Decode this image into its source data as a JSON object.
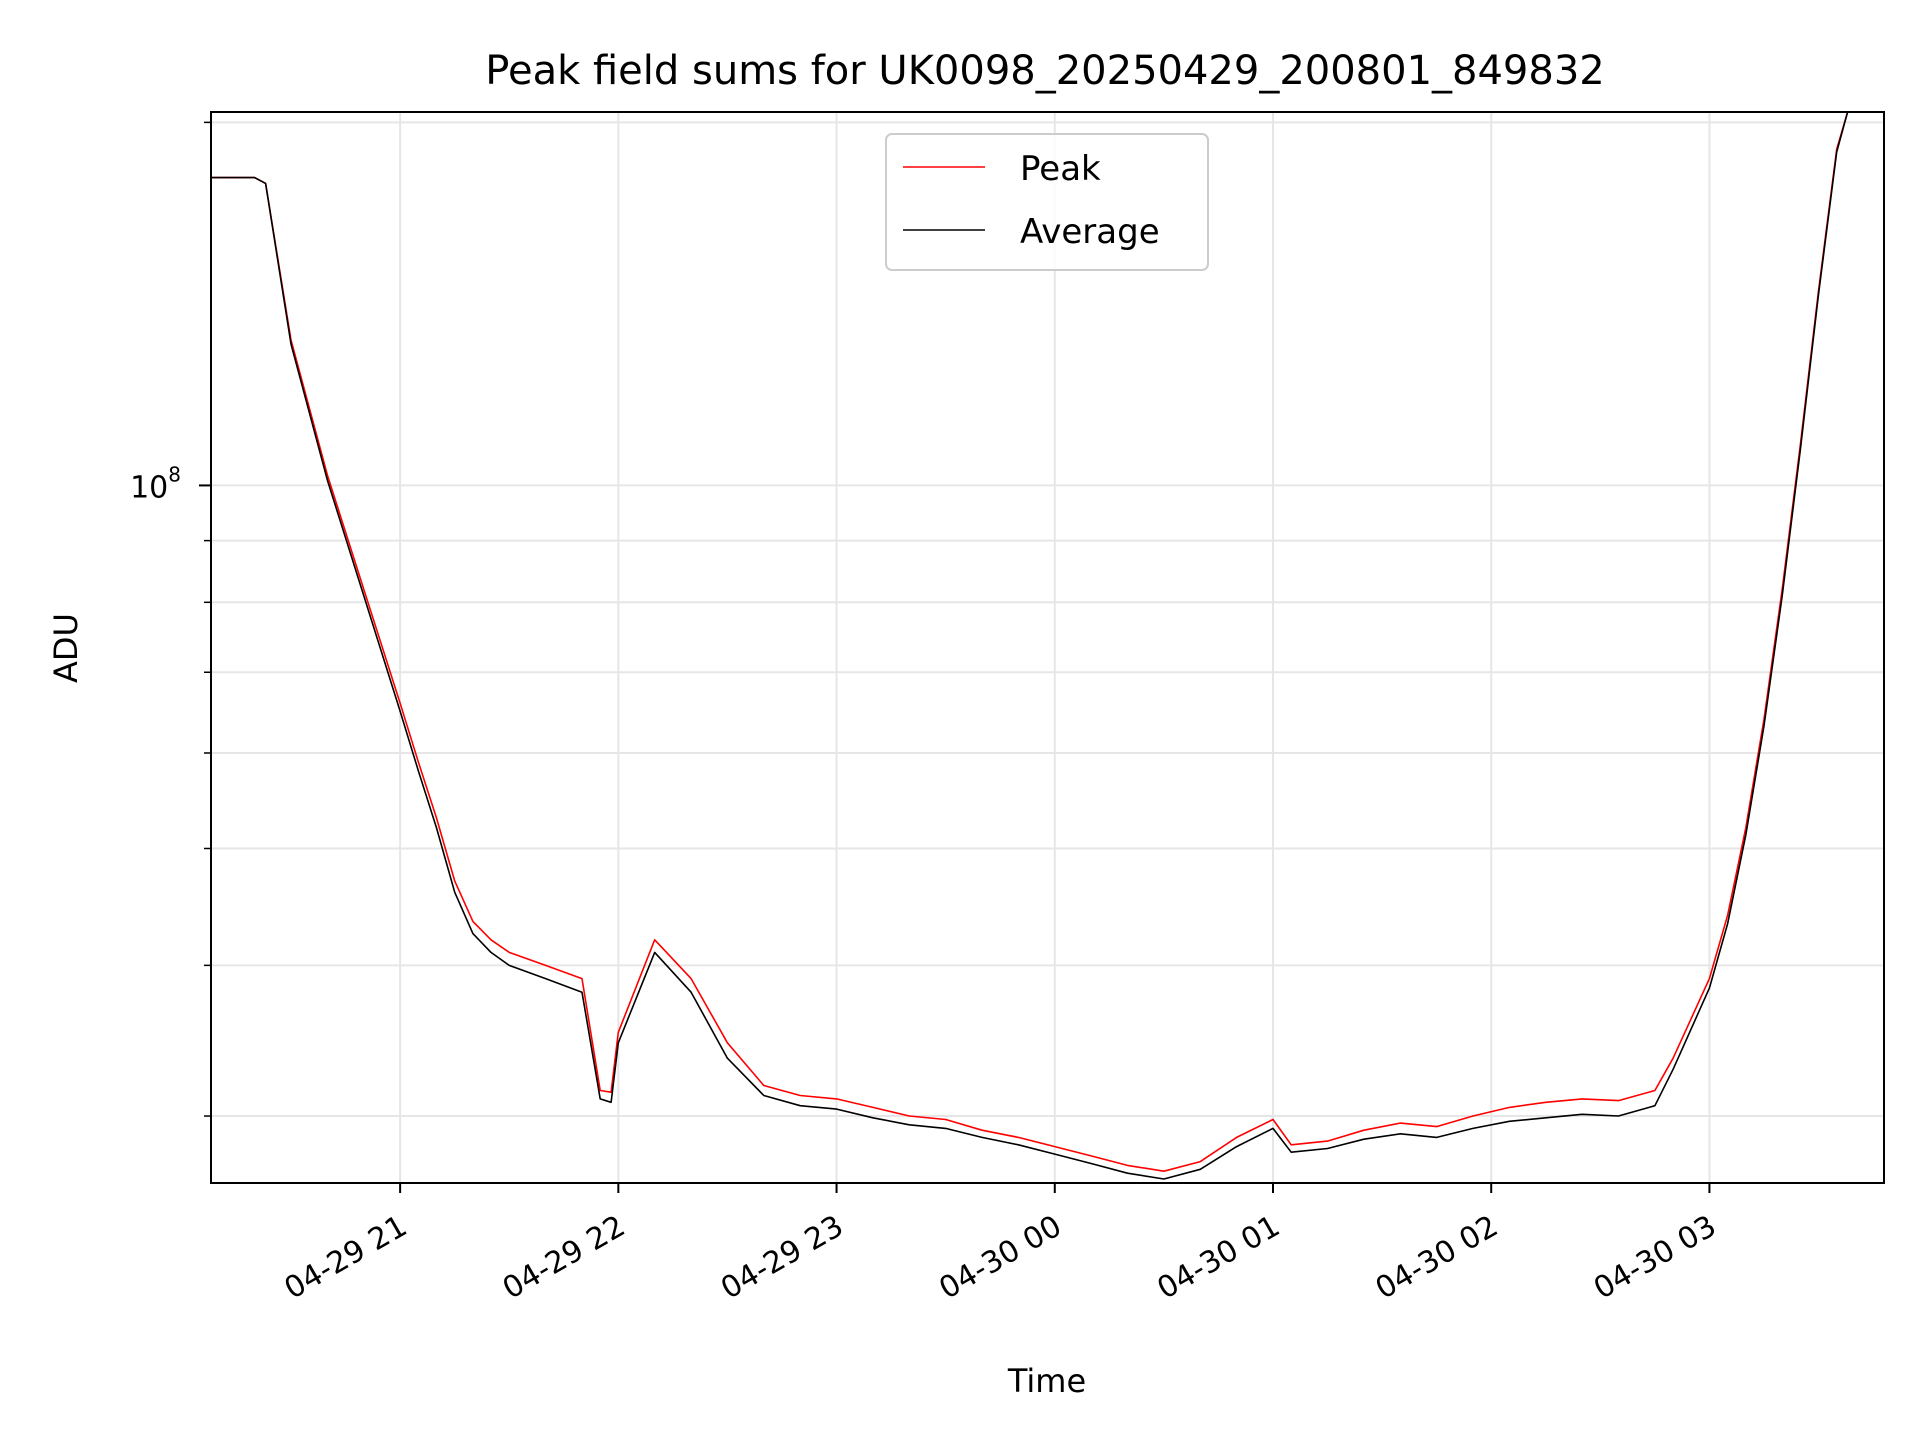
{
  "chart_data": {
    "type": "line",
    "title": "Peak field sums for UK0098_20250429_200801_849832",
    "xlabel": "Time",
    "ylabel": "ADU",
    "y_scale": "log",
    "ylim": [
      26400000,
      204000000
    ],
    "y_major_ticks": [
      {
        "value": 100000000,
        "label_base": "10",
        "label_exp": "8"
      }
    ],
    "y_minor_ticks": [
      30000000,
      40000000,
      50000000,
      60000000,
      70000000,
      80000000,
      90000000,
      200000000
    ],
    "xlim": [
      "2025-04-29 20:08",
      "2025-04-30 03:48"
    ],
    "x_ticks": [
      {
        "time": "2025-04-29 21:00",
        "label": "04-29 21"
      },
      {
        "time": "2025-04-29 22:00",
        "label": "04-29 22"
      },
      {
        "time": "2025-04-29 23:00",
        "label": "04-29 23"
      },
      {
        "time": "2025-04-30 00:00",
        "label": "04-30 00"
      },
      {
        "time": "2025-04-30 01:00",
        "label": "04-30 01"
      },
      {
        "time": "2025-04-30 02:00",
        "label": "04-30 02"
      },
      {
        "time": "2025-04-30 03:00",
        "label": "04-30 03"
      }
    ],
    "grid": true,
    "legend_position": "top-center",
    "series": [
      {
        "name": "Peak",
        "color": "#ff0000",
        "points": [
          [
            "2025-04-29 20:08",
            180000000
          ],
          [
            "2025-04-29 20:20",
            180000000
          ],
          [
            "2025-04-29 20:23",
            178000000
          ],
          [
            "2025-04-29 20:30",
            132000000
          ],
          [
            "2025-04-29 20:40",
            102000000
          ],
          [
            "2025-04-29 20:50",
            82000000
          ],
          [
            "2025-04-29 21:00",
            66000000
          ],
          [
            "2025-04-29 21:05",
            59000000
          ],
          [
            "2025-04-29 21:10",
            53000000
          ],
          [
            "2025-04-29 21:15",
            47000000
          ],
          [
            "2025-04-29 21:20",
            43500000
          ],
          [
            "2025-04-29 21:25",
            42000000
          ],
          [
            "2025-04-29 21:30",
            41000000
          ],
          [
            "2025-04-29 21:40",
            40000000
          ],
          [
            "2025-04-29 21:50",
            39000000
          ],
          [
            "2025-04-29 21:55",
            31500000
          ],
          [
            "2025-04-29 21:58",
            31400000
          ],
          [
            "2025-04-29 22:00",
            35200000
          ],
          [
            "2025-04-29 22:10",
            42000000
          ],
          [
            "2025-04-29 22:20",
            39000000
          ],
          [
            "2025-04-29 22:30",
            34500000
          ],
          [
            "2025-04-29 22:40",
            31800000
          ],
          [
            "2025-04-29 22:50",
            31200000
          ],
          [
            "2025-04-29 23:00",
            31000000
          ],
          [
            "2025-04-29 23:10",
            30500000
          ],
          [
            "2025-04-29 23:20",
            30000000
          ],
          [
            "2025-04-29 23:30",
            29800000
          ],
          [
            "2025-04-29 23:40",
            29200000
          ],
          [
            "2025-04-29 23:50",
            28800000
          ],
          [
            "2025-04-30 00:00",
            28300000
          ],
          [
            "2025-04-30 00:10",
            27800000
          ],
          [
            "2025-04-30 00:20",
            27300000
          ],
          [
            "2025-04-30 00:30",
            27000000
          ],
          [
            "2025-04-30 00:40",
            27500000
          ],
          [
            "2025-04-30 00:50",
            28800000
          ],
          [
            "2025-04-30 01:00",
            29800000
          ],
          [
            "2025-04-30 01:05",
            28400000
          ],
          [
            "2025-04-30 01:15",
            28600000
          ],
          [
            "2025-04-30 01:25",
            29200000
          ],
          [
            "2025-04-30 01:35",
            29600000
          ],
          [
            "2025-04-30 01:45",
            29400000
          ],
          [
            "2025-04-30 01:55",
            30000000
          ],
          [
            "2025-04-30 02:05",
            30500000
          ],
          [
            "2025-04-30 02:15",
            30800000
          ],
          [
            "2025-04-30 02:25",
            31000000
          ],
          [
            "2025-04-30 02:35",
            30900000
          ],
          [
            "2025-04-30 02:45",
            31500000
          ],
          [
            "2025-04-30 02:50",
            33500000
          ],
          [
            "2025-04-30 03:00",
            39000000
          ],
          [
            "2025-04-30 03:05",
            44000000
          ],
          [
            "2025-04-30 03:10",
            52000000
          ],
          [
            "2025-04-30 03:15",
            64000000
          ],
          [
            "2025-04-30 03:20",
            82000000
          ],
          [
            "2025-04-30 03:25",
            108000000
          ],
          [
            "2025-04-30 03:30",
            145000000
          ],
          [
            "2025-04-30 03:35",
            190000000
          ],
          [
            "2025-04-30 03:38",
            204000000
          ],
          [
            "2025-04-30 03:48",
            204000000
          ]
        ]
      },
      {
        "name": "Average",
        "color": "#000000",
        "points": [
          [
            "2025-04-29 20:08",
            180000000
          ],
          [
            "2025-04-29 20:20",
            180000000
          ],
          [
            "2025-04-29 20:23",
            178000000
          ],
          [
            "2025-04-29 20:30",
            131000000
          ],
          [
            "2025-04-29 20:40",
            101000000
          ],
          [
            "2025-04-29 20:50",
            81000000
          ],
          [
            "2025-04-29 21:00",
            65000000
          ],
          [
            "2025-04-29 21:05",
            58000000
          ],
          [
            "2025-04-29 21:10",
            52000000
          ],
          [
            "2025-04-29 21:15",
            46000000
          ],
          [
            "2025-04-29 21:20",
            42500000
          ],
          [
            "2025-04-29 21:25",
            41000000
          ],
          [
            "2025-04-29 21:30",
            40000000
          ],
          [
            "2025-04-29 21:40",
            39000000
          ],
          [
            "2025-04-29 21:50",
            38000000
          ],
          [
            "2025-04-29 21:55",
            31000000
          ],
          [
            "2025-04-29 21:58",
            30800000
          ],
          [
            "2025-04-29 22:00",
            34500000
          ],
          [
            "2025-04-29 22:10",
            41000000
          ],
          [
            "2025-04-29 22:20",
            38000000
          ],
          [
            "2025-04-29 22:30",
            33500000
          ],
          [
            "2025-04-29 22:40",
            31200000
          ],
          [
            "2025-04-29 22:50",
            30600000
          ],
          [
            "2025-04-29 23:00",
            30400000
          ],
          [
            "2025-04-29 23:10",
            29900000
          ],
          [
            "2025-04-29 23:20",
            29500000
          ],
          [
            "2025-04-29 23:30",
            29300000
          ],
          [
            "2025-04-29 23:40",
            28800000
          ],
          [
            "2025-04-29 23:50",
            28400000
          ],
          [
            "2025-04-30 00:00",
            27900000
          ],
          [
            "2025-04-30 00:10",
            27400000
          ],
          [
            "2025-04-30 00:20",
            26900000
          ],
          [
            "2025-04-30 00:30",
            26600000
          ],
          [
            "2025-04-30 00:40",
            27100000
          ],
          [
            "2025-04-30 00:50",
            28300000
          ],
          [
            "2025-04-30 01:00",
            29300000
          ],
          [
            "2025-04-30 01:05",
            28000000
          ],
          [
            "2025-04-30 01:15",
            28200000
          ],
          [
            "2025-04-30 01:25",
            28700000
          ],
          [
            "2025-04-30 01:35",
            29000000
          ],
          [
            "2025-04-30 01:45",
            28800000
          ],
          [
            "2025-04-30 01:55",
            29300000
          ],
          [
            "2025-04-30 02:05",
            29700000
          ],
          [
            "2025-04-30 02:15",
            29900000
          ],
          [
            "2025-04-30 02:25",
            30100000
          ],
          [
            "2025-04-30 02:35",
            30000000
          ],
          [
            "2025-04-30 02:45",
            30600000
          ],
          [
            "2025-04-30 02:50",
            32800000
          ],
          [
            "2025-04-30 03:00",
            38300000
          ],
          [
            "2025-04-30 03:05",
            43300000
          ],
          [
            "2025-04-30 03:10",
            51300000
          ],
          [
            "2025-04-30 03:15",
            63200000
          ],
          [
            "2025-04-30 03:20",
            81000000
          ],
          [
            "2025-04-30 03:25",
            107000000
          ],
          [
            "2025-04-30 03:30",
            144000000
          ],
          [
            "2025-04-30 03:35",
            189000000
          ],
          [
            "2025-04-30 03:38",
            204000000
          ],
          [
            "2025-04-30 03:48",
            204000000
          ]
        ]
      }
    ]
  }
}
